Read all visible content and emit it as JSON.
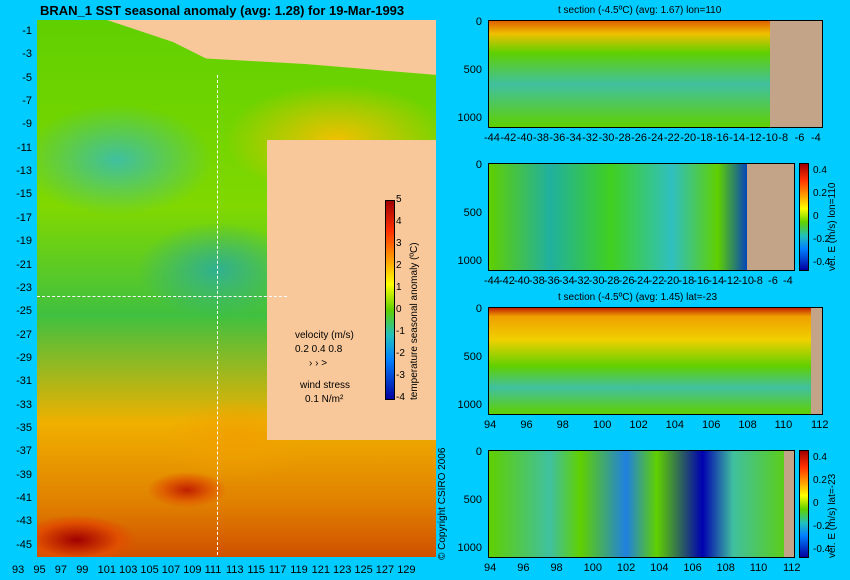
{
  "map": {
    "title": "BRAN_1  SST seasonal anomaly  (avg: 1.28) for 19-Mar-1993",
    "lat_ticks": [
      "-1",
      "-3",
      "-5",
      "-7",
      "-9",
      "-11",
      "-13",
      "-15",
      "-17",
      "-19",
      "-21",
      "-23",
      "-25",
      "-27",
      "-29",
      "-31",
      "-33",
      "-35",
      "-37",
      "-39",
      "-41",
      "-43",
      "-45"
    ],
    "lon_ticks": [
      "93",
      "95",
      "97",
      "99",
      "101",
      "103",
      "105",
      "107",
      "109",
      "111",
      "113",
      "115",
      "117",
      "119",
      "121",
      "123",
      "125",
      "127",
      "129"
    ],
    "colorbar_ticks": [
      "5",
      "4",
      "3",
      "2",
      "1",
      "0",
      "-1",
      "-2",
      "-3",
      "-4"
    ],
    "colorbar_label": "temperature seasonal anomaly (ºC)",
    "velocity_label": "velocity (m/s)",
    "velocity_scale": "0.2 0.4 0.8",
    "wind_label": "wind stress",
    "wind_scale": "0.1 N/m²",
    "copyright": "© Copyright CSIRO 2006"
  },
  "panels": [
    {
      "title": "t section (-4.5ºC) (avg: 1.67) lon=110",
      "depth_ticks": [
        "0",
        "500",
        "1000"
      ],
      "x_ticks": [
        "-44",
        "-42",
        "-40",
        "-38",
        "-36",
        "-34",
        "-32",
        "-30",
        "-28",
        "-26",
        "-24",
        "-22",
        "-20",
        "-18",
        "-16",
        "-14",
        "-12",
        "-10",
        "-8",
        "-6",
        "-4"
      ],
      "colorbar": false
    },
    {
      "title": "",
      "depth_ticks": [
        "0",
        "500",
        "1000"
      ],
      "x_ticks": [
        "-44",
        "-42",
        "-40",
        "-38",
        "-36",
        "-34",
        "-32",
        "-30",
        "-28",
        "-26",
        "-24",
        "-22",
        "-20",
        "-18",
        "-16",
        "-14",
        "-12",
        "-10",
        "-8",
        "-6",
        "-4"
      ],
      "colorbar": true,
      "colorbar_ticks": [
        "0.4",
        "0.2",
        "0",
        "-0.2",
        "-0.4"
      ],
      "colorbar_label": "vel. E (m/s) lon=110"
    },
    {
      "title": "t section (-4.5ºC) (avg: 1.45) lat=-23",
      "depth_ticks": [
        "0",
        "500",
        "1000"
      ],
      "x_ticks": [
        "94",
        "96",
        "98",
        "100",
        "102",
        "104",
        "106",
        "108",
        "110",
        "112"
      ],
      "colorbar": false
    },
    {
      "title": "",
      "depth_ticks": [
        "0",
        "500",
        "1000"
      ],
      "x_ticks": [
        "94",
        "96",
        "98",
        "100",
        "102",
        "104",
        "106",
        "108",
        "110",
        "112"
      ],
      "colorbar": true,
      "colorbar_ticks": [
        "0.4",
        "0.2",
        "0",
        "-0.2",
        "-0.4"
      ],
      "colorbar_label": "vel. E (m/s) lat=-23"
    }
  ],
  "colors": {
    "background": "#00ccff",
    "land": "#f8c89a",
    "section_land": "#c4a488"
  }
}
